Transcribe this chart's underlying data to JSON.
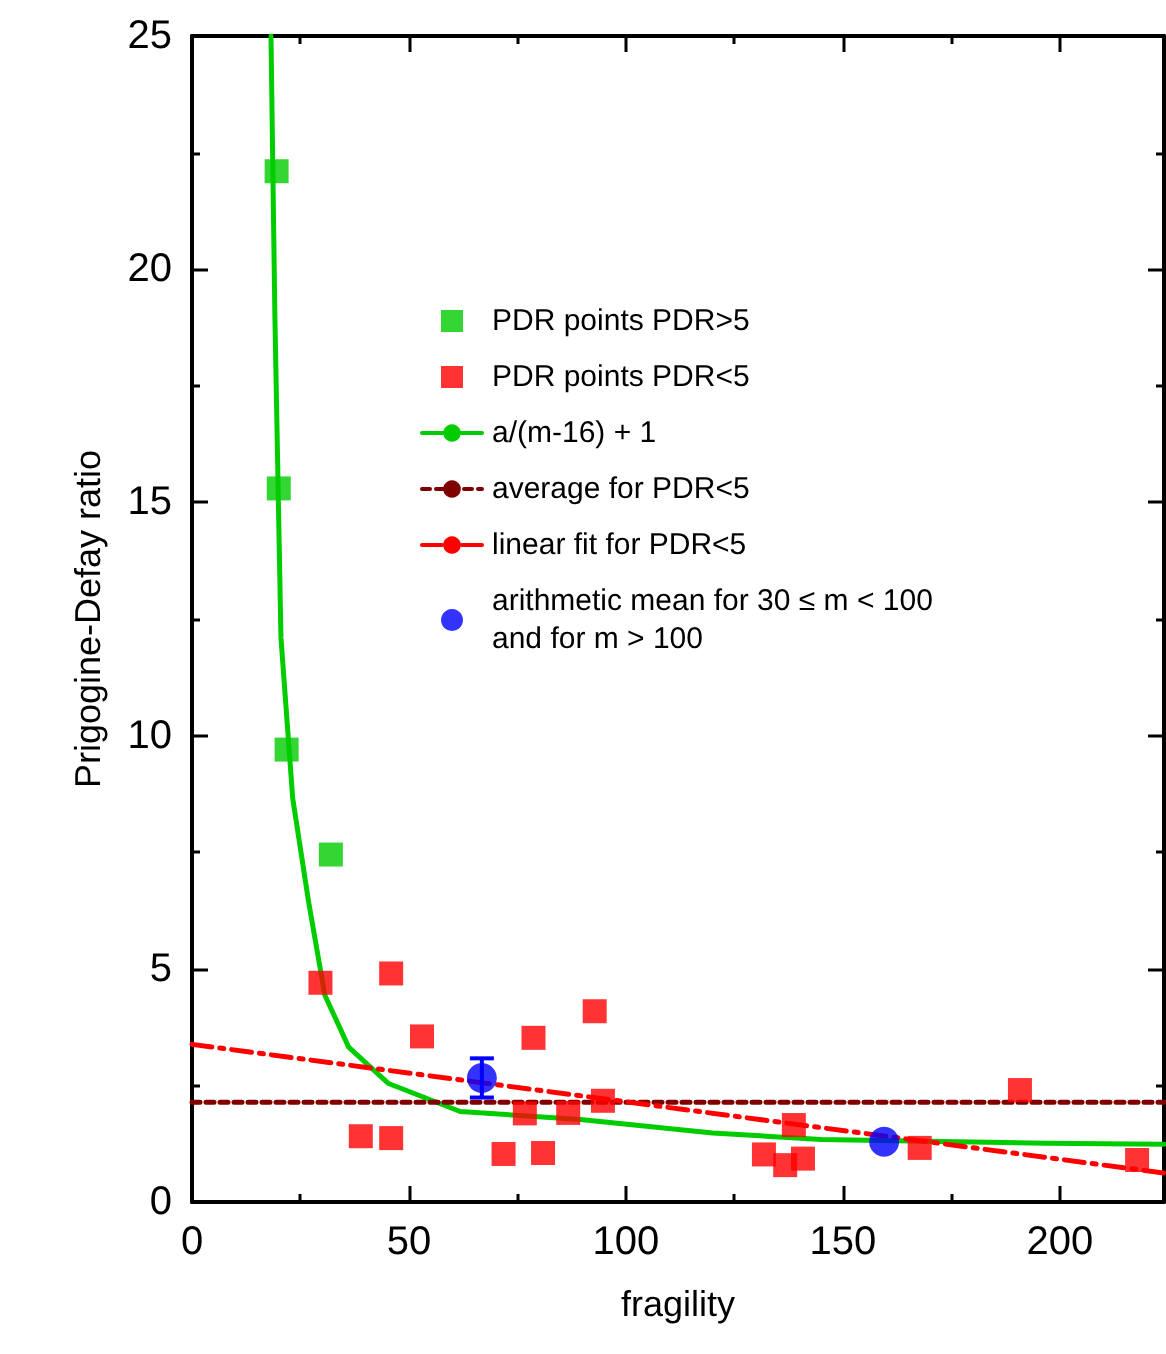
{
  "chart_data": {
    "type": "scatter",
    "xlabel": "fragility",
    "ylabel": "Prigogine-Defay ratio",
    "xlim": [
      0,
      224
    ],
    "ylim": [
      0,
      25
    ],
    "xticks": [
      0,
      50,
      100,
      150,
      200
    ],
    "yticks": [
      0,
      5,
      10,
      15,
      20,
      25
    ],
    "grid": false,
    "legend": "top right",
    "series": [
      {
        "name": "PDR points PDR>5",
        "type": "scatter",
        "marker": "square",
        "color": "#00cc00",
        "x": [
          19.5,
          20,
          21.8,
          32
        ],
        "values": [
          22.1,
          15.3,
          9.7,
          7.45
        ]
      },
      {
        "name": "PDR points PDR<5",
        "type": "scatter",
        "marker": "square",
        "color": "#ff0000",
        "x": [
          29.6,
          38.9,
          45.9,
          45.9,
          53,
          71.8,
          76.7,
          78.7,
          80.9,
          86.7,
          92.8,
          94.7,
          131.8,
          136.7,
          138.7,
          140.8,
          167.7,
          190.8,
          217.8
        ],
        "values": [
          4.7,
          1.41,
          4.9,
          1.37,
          3.55,
          1.03,
          1.9,
          3.52,
          1.05,
          1.91,
          4.09,
          2.17,
          1.02,
          0.79,
          1.65,
          0.93,
          1.16,
          2.4,
          0.9
        ]
      },
      {
        "name": "a/(m-16) + 1",
        "type": "line",
        "marker": "none",
        "line_style": "solid",
        "color": "#00cc00",
        "x": [
          18.2,
          19.1,
          20.5,
          23.2,
          26.9,
          30.6,
          36.1,
          45.3,
          61.8,
          89.5,
          120,
          145,
          196.8,
          224
        ],
        "values": [
          25,
          19,
          12.1,
          8.66,
          6.42,
          4.44,
          3.32,
          2.54,
          1.94,
          1.77,
          1.48,
          1.34,
          1.26,
          1.24
        ]
      },
      {
        "name": "average for PDR<5",
        "type": "line",
        "marker": "none",
        "line_style": "dashed",
        "color": "#800000",
        "x": [
          0,
          224
        ],
        "values": [
          2.14,
          2.14
        ]
      },
      {
        "name": "linear fit for PDR<5",
        "type": "line",
        "marker": "none",
        "line_style": "dashdot",
        "color": "#ff0000",
        "x": [
          0,
          224
        ],
        "values": [
          3.38,
          0.62
        ]
      },
      {
        "name": "arithmetic mean for 30 ≤ m < 100\nand for m > 100",
        "type": "scatter",
        "marker": "circle",
        "color": "#0000ff",
        "x": [
          66.8,
          159.5
        ],
        "values": [
          2.66,
          1.29
        ],
        "errors": [
          0.42,
          null
        ]
      }
    ]
  }
}
